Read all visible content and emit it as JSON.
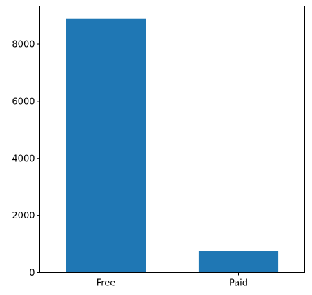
{
  "chart_data": {
    "type": "bar",
    "title": "",
    "xlabel": "",
    "ylabel": "",
    "categories": [
      "Free",
      "Paid"
    ],
    "values": [
      8900,
      760
    ],
    "ylim": [
      0,
      9340
    ],
    "yticks": [
      0,
      2000,
      4000,
      6000,
      8000
    ],
    "grid": false,
    "bar_color": "#1f77b4"
  },
  "y_tick_labels": [
    "0",
    "2000",
    "4000",
    "6000",
    "8000"
  ],
  "x_tick_labels": [
    "Free",
    "Paid"
  ]
}
